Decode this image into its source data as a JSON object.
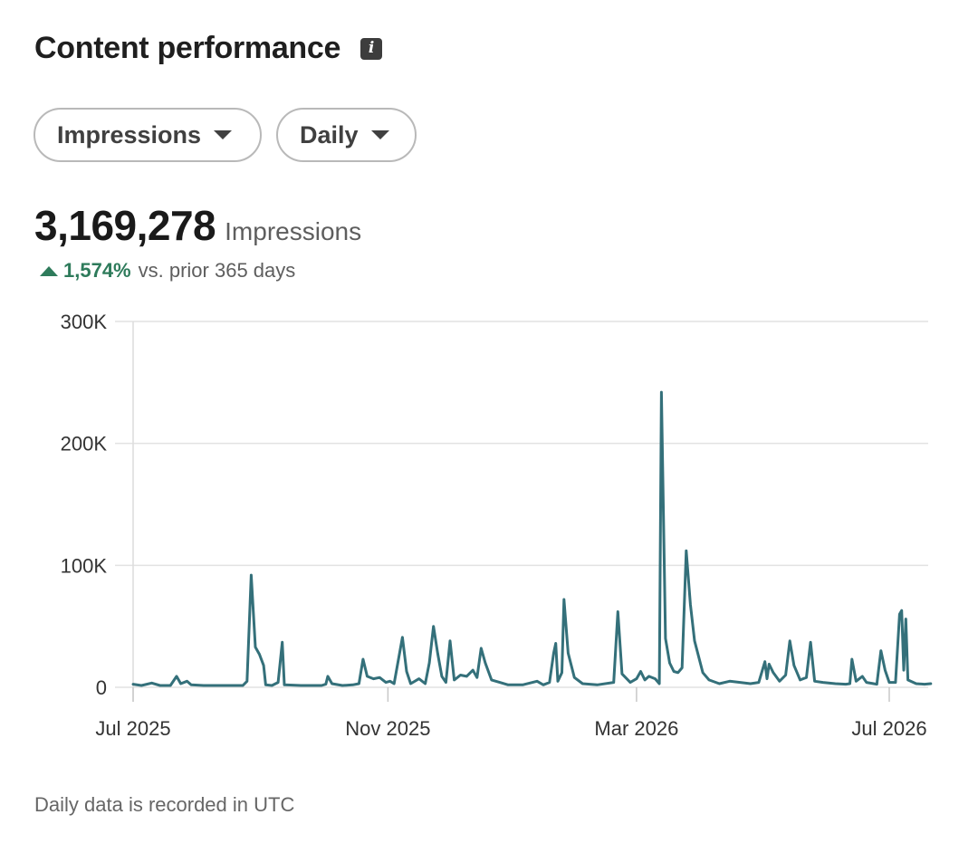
{
  "header": {
    "title": "Content performance",
    "info_icon": "info-icon"
  },
  "filters": {
    "metric": {
      "label": "Impressions",
      "icon": "chevron-down-icon"
    },
    "period": {
      "label": "Daily",
      "icon": "chevron-down-icon"
    }
  },
  "summary": {
    "total": "3,169,278",
    "unit": "Impressions",
    "change": "1,574%",
    "change_label": "vs. prior 365 days",
    "change_color": "#2e7b5b"
  },
  "footer": {
    "note": "Daily data is recorded in UTC"
  },
  "chart_data": {
    "type": "line",
    "line_color": "#34707a",
    "grid": true,
    "legend": "none",
    "ylim": [
      0,
      300000
    ],
    "y_ticks": [
      {
        "value": 0,
        "label": "0"
      },
      {
        "value": 100000,
        "label": "100K"
      },
      {
        "value": 200000,
        "label": "200K"
      },
      {
        "value": 300000,
        "label": "300K"
      }
    ],
    "x_ticks": [
      {
        "date": "2025-07-01",
        "label": "Jul 2025"
      },
      {
        "date": "2025-11-01",
        "label": "Nov 2025"
      },
      {
        "date": "2026-03-01",
        "label": "Mar 2026"
      },
      {
        "date": "2026-07-01",
        "label": "Jul 2026"
      }
    ],
    "series": [
      {
        "points": [
          [
            "2025-07-01",
            2500
          ],
          [
            "2025-07-05",
            1500
          ],
          [
            "2025-07-10",
            3500
          ],
          [
            "2025-07-14",
            1500
          ],
          [
            "2025-07-19",
            1500
          ],
          [
            "2025-07-22",
            9000
          ],
          [
            "2025-07-24",
            3000
          ],
          [
            "2025-07-27",
            5000
          ],
          [
            "2025-07-29",
            2000
          ],
          [
            "2025-08-04",
            1500
          ],
          [
            "2025-08-12",
            1500
          ],
          [
            "2025-08-23",
            1500
          ],
          [
            "2025-08-25",
            5000
          ],
          [
            "2025-08-27",
            92000
          ],
          [
            "2025-08-29",
            33000
          ],
          [
            "2025-08-31",
            27000
          ],
          [
            "2025-09-02",
            18000
          ],
          [
            "2025-09-03",
            2000
          ],
          [
            "2025-09-06",
            1500
          ],
          [
            "2025-09-09",
            4000
          ],
          [
            "2025-09-11",
            37000
          ],
          [
            "2025-09-12",
            2000
          ],
          [
            "2025-09-20",
            1500
          ],
          [
            "2025-09-30",
            1500
          ],
          [
            "2025-10-02",
            2500
          ],
          [
            "2025-10-03",
            9000
          ],
          [
            "2025-10-05",
            3000
          ],
          [
            "2025-10-10",
            1500
          ],
          [
            "2025-10-15",
            2000
          ],
          [
            "2025-10-18",
            3000
          ],
          [
            "2025-10-20",
            23000
          ],
          [
            "2025-10-22",
            9000
          ],
          [
            "2025-10-25",
            7000
          ],
          [
            "2025-10-28",
            8000
          ],
          [
            "2025-10-31",
            4000
          ],
          [
            "2025-11-02",
            5000
          ],
          [
            "2025-11-04",
            3000
          ],
          [
            "2025-11-08",
            41000
          ],
          [
            "2025-11-10",
            13000
          ],
          [
            "2025-11-12",
            3000
          ],
          [
            "2025-11-16",
            7000
          ],
          [
            "2025-11-19",
            3000
          ],
          [
            "2025-11-21",
            20000
          ],
          [
            "2025-11-23",
            50000
          ],
          [
            "2025-11-25",
            28000
          ],
          [
            "2025-11-27",
            9000
          ],
          [
            "2025-11-29",
            4000
          ],
          [
            "2025-12-01",
            38000
          ],
          [
            "2025-12-03",
            6000
          ],
          [
            "2025-12-06",
            10000
          ],
          [
            "2025-12-09",
            9000
          ],
          [
            "2025-12-12",
            14000
          ],
          [
            "2025-12-14",
            8000
          ],
          [
            "2025-12-16",
            32000
          ],
          [
            "2025-12-18",
            20000
          ],
          [
            "2025-12-21",
            6000
          ],
          [
            "2025-12-25",
            4000
          ],
          [
            "2025-12-29",
            2000
          ],
          [
            "2026-01-05",
            2000
          ],
          [
            "2026-01-12",
            5000
          ],
          [
            "2026-01-15",
            2000
          ],
          [
            "2026-01-18",
            4000
          ],
          [
            "2026-01-20",
            28000
          ],
          [
            "2026-01-21",
            36000
          ],
          [
            "2026-01-22",
            5000
          ],
          [
            "2026-01-24",
            12000
          ],
          [
            "2026-01-25",
            72000
          ],
          [
            "2026-01-27",
            28000
          ],
          [
            "2026-01-30",
            8000
          ],
          [
            "2026-02-03",
            3000
          ],
          [
            "2026-02-10",
            2000
          ],
          [
            "2026-02-18",
            4000
          ],
          [
            "2026-02-20",
            62000
          ],
          [
            "2026-02-22",
            11000
          ],
          [
            "2026-02-26",
            4000
          ],
          [
            "2026-03-01",
            7000
          ],
          [
            "2026-03-03",
            13000
          ],
          [
            "2026-03-05",
            6000
          ],
          [
            "2026-03-07",
            9000
          ],
          [
            "2026-03-10",
            7000
          ],
          [
            "2026-03-12",
            3000
          ],
          [
            "2026-03-13",
            242000
          ],
          [
            "2026-03-15",
            40000
          ],
          [
            "2026-03-17",
            20000
          ],
          [
            "2026-03-19",
            13000
          ],
          [
            "2026-03-21",
            12000
          ],
          [
            "2026-03-23",
            16000
          ],
          [
            "2026-03-25",
            112000
          ],
          [
            "2026-03-27",
            68000
          ],
          [
            "2026-03-29",
            38000
          ],
          [
            "2026-04-02",
            12000
          ],
          [
            "2026-04-05",
            6000
          ],
          [
            "2026-04-10",
            3000
          ],
          [
            "2026-04-15",
            5000
          ],
          [
            "2026-04-20",
            4000
          ],
          [
            "2026-04-25",
            3000
          ],
          [
            "2026-04-29",
            4000
          ],
          [
            "2026-05-02",
            21000
          ],
          [
            "2026-05-03",
            7000
          ],
          [
            "2026-05-04",
            19000
          ],
          [
            "2026-05-06",
            12000
          ],
          [
            "2026-05-09",
            5000
          ],
          [
            "2026-05-12",
            10000
          ],
          [
            "2026-05-14",
            38000
          ],
          [
            "2026-05-16",
            18000
          ],
          [
            "2026-05-19",
            6000
          ],
          [
            "2026-05-22",
            8000
          ],
          [
            "2026-05-24",
            37000
          ],
          [
            "2026-05-26",
            5000
          ],
          [
            "2026-05-30",
            4000
          ],
          [
            "2026-06-05",
            3000
          ],
          [
            "2026-06-10",
            2500
          ],
          [
            "2026-06-12",
            3000
          ],
          [
            "2026-06-13",
            23000
          ],
          [
            "2026-06-15",
            5000
          ],
          [
            "2026-06-18",
            9000
          ],
          [
            "2026-06-20",
            4000
          ],
          [
            "2026-06-25",
            2500
          ],
          [
            "2026-06-27",
            30000
          ],
          [
            "2026-06-29",
            14000
          ],
          [
            "2026-07-01",
            4000
          ],
          [
            "2026-07-04",
            4000
          ],
          [
            "2026-07-06",
            60000
          ],
          [
            "2026-07-07",
            63000
          ],
          [
            "2026-07-08",
            14000
          ],
          [
            "2026-07-09",
            56000
          ],
          [
            "2026-07-10",
            6000
          ],
          [
            "2026-07-14",
            3000
          ],
          [
            "2026-07-18",
            2500
          ],
          [
            "2026-07-21",
            3000
          ]
        ]
      }
    ]
  }
}
